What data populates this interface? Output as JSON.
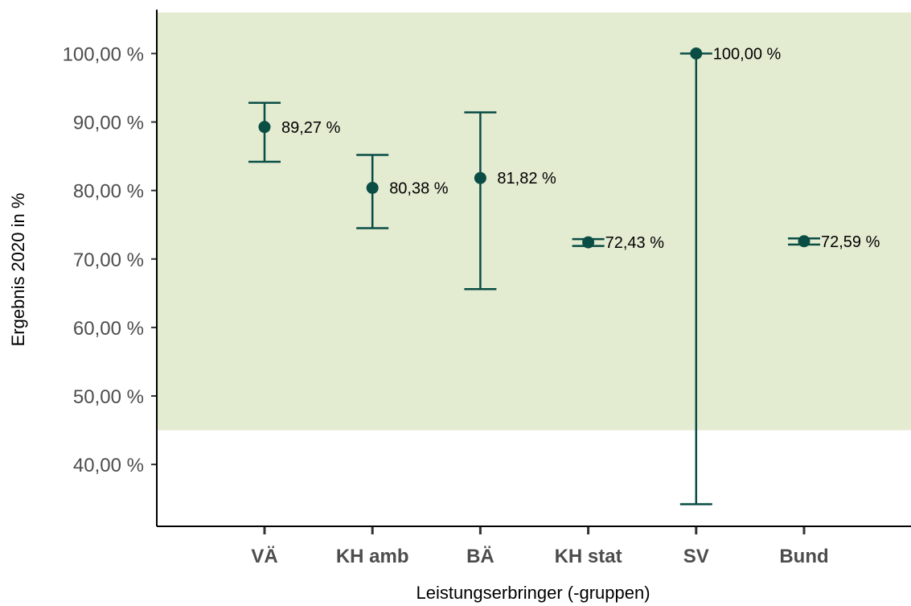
{
  "chart_data": {
    "type": "scatter",
    "xlabel": "Leistungserbringer (-gruppen)",
    "ylabel": "Ergebnis 2020 in %",
    "ylim": [
      31,
      106
    ],
    "yticks": [
      40,
      50,
      60,
      70,
      80,
      90,
      100
    ],
    "ytick_labels": [
      "40,00 %",
      "50,00 %",
      "60,00 %",
      "70,00 %",
      "80,00 %",
      "90,00 %",
      "100,00 %"
    ],
    "categories": [
      "VÄ",
      "KH amb",
      "BÄ",
      "KH stat",
      "SV",
      "Bund"
    ],
    "values": [
      89.27,
      80.38,
      81.82,
      72.43,
      100.0,
      72.59
    ],
    "lower": [
      84.2,
      74.5,
      65.6,
      71.9,
      34.2,
      72.1
    ],
    "upper": [
      92.8,
      85.2,
      91.4,
      72.9,
      100.0,
      73.0
    ],
    "value_labels": [
      "89,27 %",
      "80,38 %",
      "81,82 %",
      "72,43 %",
      "100,00 %",
      "72,59 %"
    ],
    "reference_band": {
      "from": 45,
      "to": 106,
      "color": "#e3ebd1"
    },
    "colors": {
      "marker": "#0a4d45",
      "axis": "#000000",
      "tick_text": "#4d4d4d"
    },
    "grid": false,
    "legend": "none"
  }
}
